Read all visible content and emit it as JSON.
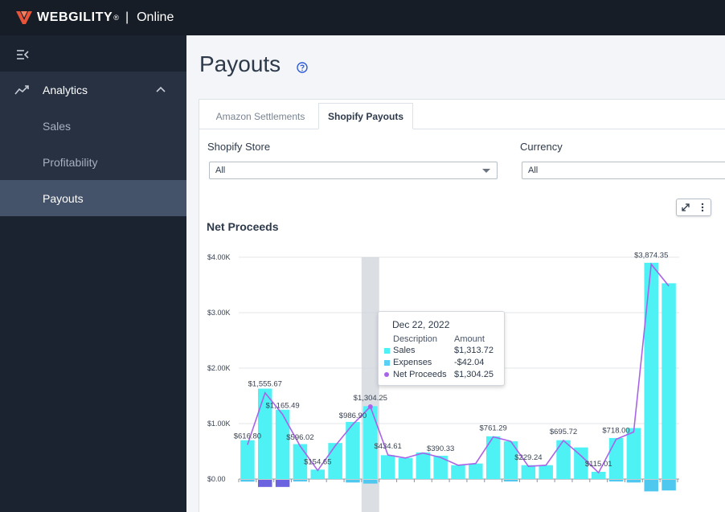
{
  "topbar": {
    "brand": "WEBGILITY",
    "reg": "®",
    "divider": "|",
    "product": "Online"
  },
  "sidebar": {
    "group": {
      "label": "Analytics",
      "icon": "analytics-trend-icon"
    },
    "items": [
      {
        "label": "Sales",
        "active": false
      },
      {
        "label": "Profitability",
        "active": false
      },
      {
        "label": "Payouts",
        "active": true
      }
    ]
  },
  "page": {
    "title": "Payouts",
    "help_icon": "question-circle-icon"
  },
  "tabs": [
    {
      "label": "Amazon Settlements"
    },
    {
      "label": "Shopify Payouts",
      "active": true
    }
  ],
  "filters": {
    "store": {
      "label": "Shopify Store",
      "value": "All"
    },
    "currency": {
      "label": "Currency",
      "value": "All"
    }
  },
  "chart_data": {
    "type": "bar",
    "title": "Net Proceeds",
    "y_tick_labels": [
      "$4.00K",
      "$3.00K",
      "$2.00K",
      "$1.00K",
      "$0.00"
    ],
    "ylim": [
      -150,
      4000
    ],
    "highlight_index": 7,
    "sales": [
      700,
      1630,
      1250,
      630,
      170,
      650,
      1030,
      1313.72,
      430,
      380,
      480,
      420,
      250,
      280,
      770,
      680,
      250,
      250,
      700,
      570,
      130,
      740,
      920,
      3900,
      3530
    ],
    "expenses": [
      -20,
      -80,
      -80,
      -10,
      0,
      0,
      -30,
      -42.04,
      0,
      0,
      0,
      0,
      0,
      0,
      0,
      -10,
      0,
      0,
      0,
      0,
      0,
      -10,
      -30,
      -130,
      -120
    ],
    "net": [
      616.8,
      1555.67,
      1165.49,
      596.02,
      154.65,
      600,
      986.9,
      1304.25,
      434.61,
      380,
      470,
      390.33,
      250,
      280,
      761.29,
      680,
      229.24,
      250,
      695.72,
      420,
      115.01,
      718.0,
      850,
      3874.35,
      3480
    ],
    "labels": [
      {
        "i": 0,
        "text": "$616.80"
      },
      {
        "i": 1,
        "text": "$1,555.67"
      },
      {
        "i": 2,
        "text": "$1,165.49"
      },
      {
        "i": 3,
        "text": "$596.02"
      },
      {
        "i": 4,
        "text": "$154.65"
      },
      {
        "i": 6,
        "text": "$986.90"
      },
      {
        "i": 7,
        "text": "$1,304.25"
      },
      {
        "i": 8,
        "text": "$434.61"
      },
      {
        "i": 11,
        "text": "$390.33"
      },
      {
        "i": 14,
        "text": "$761.29"
      },
      {
        "i": 16,
        "text": "$229.24"
      },
      {
        "i": 18,
        "text": "$695.72"
      },
      {
        "i": 20,
        "text": "$115.01"
      },
      {
        "i": 21,
        "text": "$718.00"
      },
      {
        "i": 23,
        "text": "$3,874.35"
      }
    ],
    "colors": {
      "sales": "#4ef1f4",
      "expenses": "#6b63e0",
      "net": "#a864e8",
      "highlight": "#cfd4db",
      "grid": "#e3e6ea"
    }
  },
  "tooltip": {
    "date": "Dec 22, 2022",
    "col_desc": "Description",
    "col_amount": "Amount",
    "rows": [
      {
        "name": "Sales",
        "value": "$1,313.72",
        "color": "#4ef1f4"
      },
      {
        "name": "Expenses",
        "value": "-$42.04",
        "color": "#5ad0f4"
      },
      {
        "name": "Net Proceeds",
        "value": "$1,304.25",
        "color": "#a864e8"
      }
    ]
  },
  "chart_tools": {
    "expand_icon": "expand-arrows-icon",
    "menu_icon": "kebab-menu-icon"
  }
}
